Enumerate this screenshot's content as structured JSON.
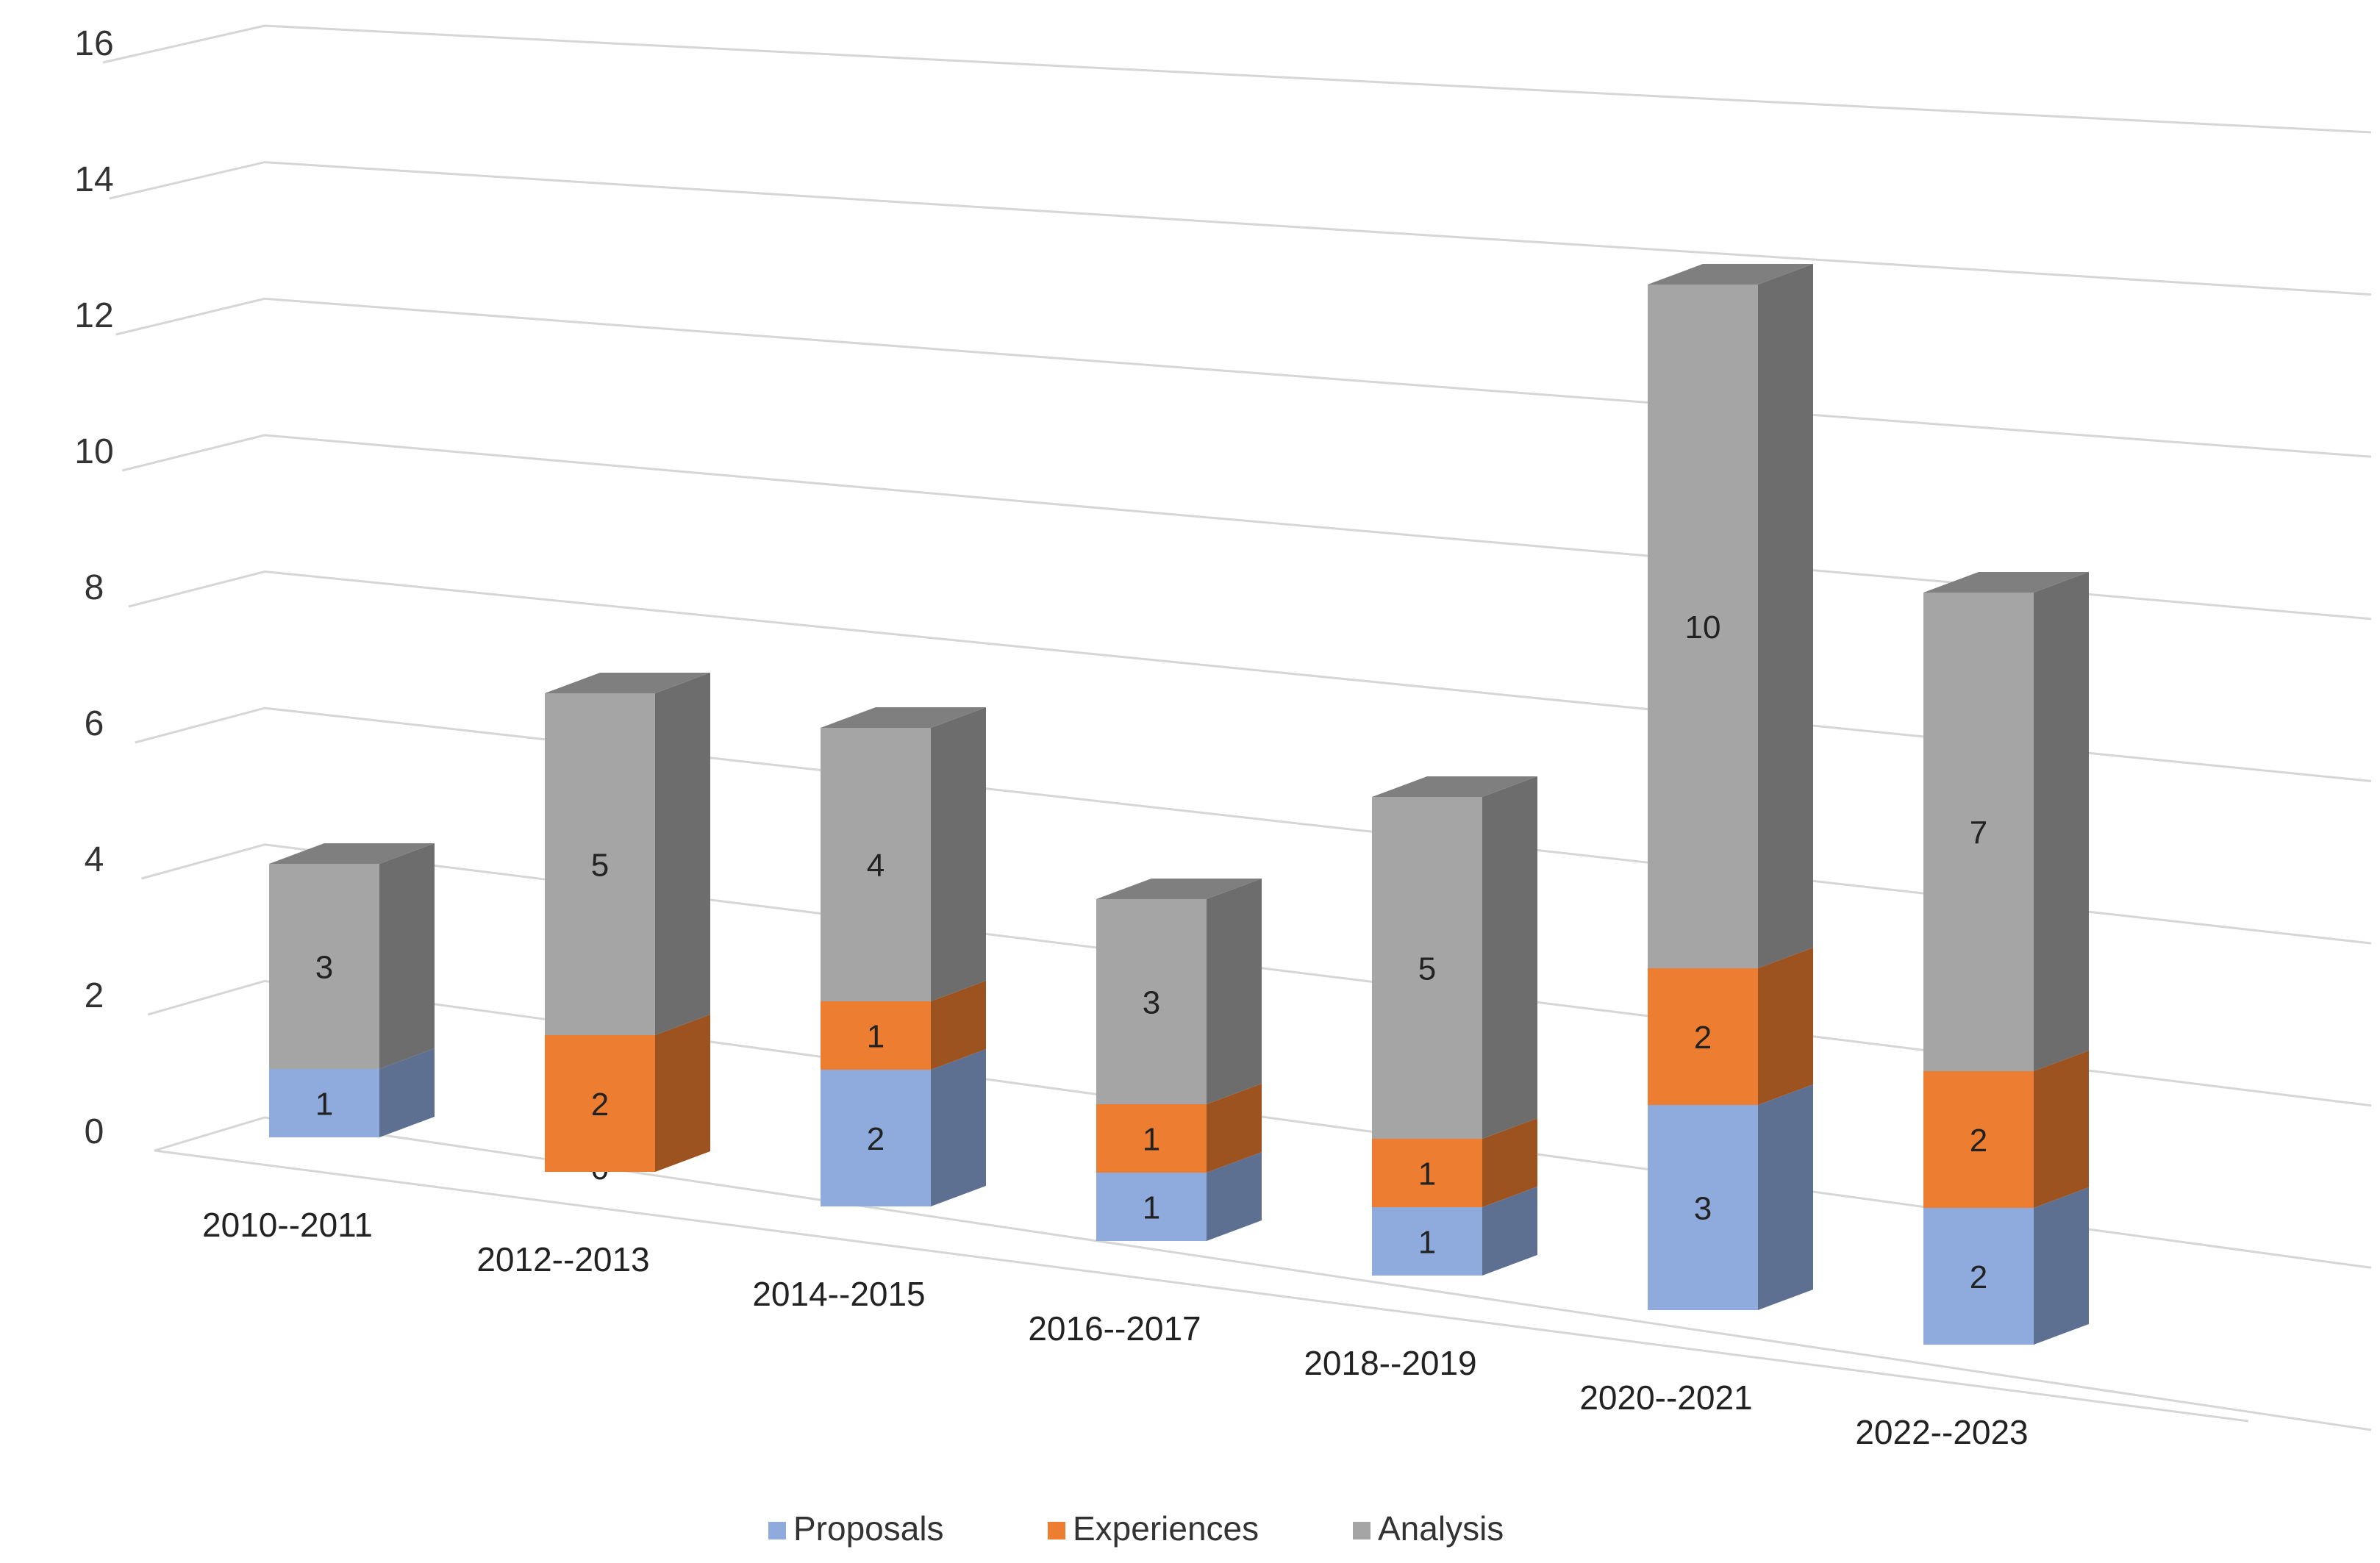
{
  "chart_data": {
    "type": "bar",
    "stacked": true,
    "projection": "3d",
    "title": "",
    "xlabel": "",
    "ylabel": "",
    "ylim": [
      0,
      16
    ],
    "ytick_labels": [
      "0",
      "2",
      "4",
      "6",
      "8",
      "10",
      "12",
      "14",
      "16"
    ],
    "grid": true,
    "legend_position": "bottom",
    "categories": [
      "2010--2011",
      "2012--2013",
      "2014--2015",
      "2016--2017",
      "2018--2019",
      "2020--2021",
      "2022--2023"
    ],
    "series": [
      {
        "name": "Proposals",
        "color": "#8FAADC",
        "values": [
          1,
          0,
          2,
          1,
          1,
          3,
          2
        ]
      },
      {
        "name": "Experiences",
        "color": "#ED7D31",
        "values": [
          0,
          2,
          1,
          1,
          1,
          2,
          2
        ]
      },
      {
        "name": "Analysis",
        "color": "#A5A5A5",
        "values": [
          3,
          5,
          4,
          3,
          5,
          10,
          7
        ]
      }
    ]
  }
}
